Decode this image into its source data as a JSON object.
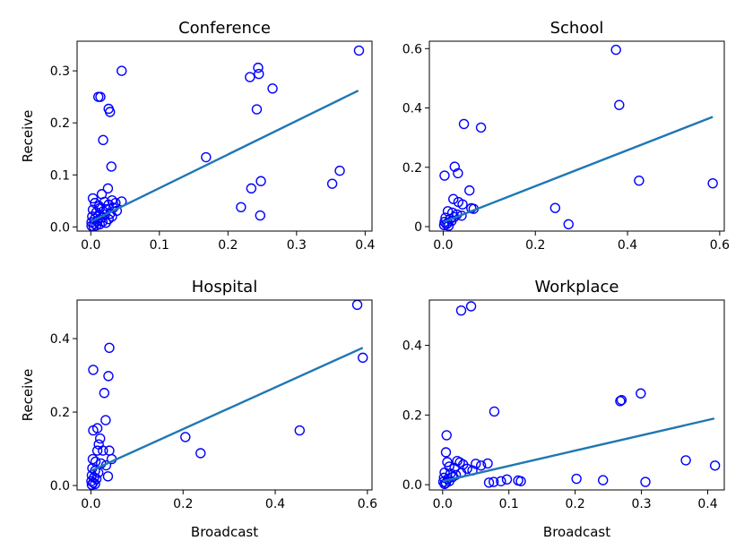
{
  "chart_data": [
    {
      "type": "scatter",
      "title": "Conference",
      "xlabel": "",
      "ylabel": "Receive",
      "xlim": [
        -0.02,
        0.41
      ],
      "ylim": [
        -0.008,
        0.357
      ],
      "xticks": [
        0.0,
        0.1,
        0.2,
        0.3,
        0.4
      ],
      "xtick_labels": [
        "0.0",
        "0.1",
        "0.2",
        "0.3",
        "0.4"
      ],
      "yticks": [
        0.0,
        0.1,
        0.2,
        0.3
      ],
      "ytick_labels": [
        "0.0",
        "0.1",
        "0.2",
        "0.3"
      ],
      "marker_color": "#0000ff",
      "fit_color": "#1f77b4",
      "fit_line": {
        "x": [
          0.0,
          0.39
        ],
        "y": [
          0.01,
          0.262
        ]
      },
      "points": [
        [
          0.045,
          0.3
        ],
        [
          0.011,
          0.25
        ],
        [
          0.014,
          0.25
        ],
        [
          0.026,
          0.227
        ],
        [
          0.028,
          0.221
        ],
        [
          0.018,
          0.167
        ],
        [
          0.03,
          0.116
        ],
        [
          0.016,
          0.063
        ],
        [
          0.025,
          0.074
        ],
        [
          0.003,
          0.055
        ],
        [
          0.006,
          0.046
        ],
        [
          0.012,
          0.04
        ],
        [
          0.02,
          0.048
        ],
        [
          0.026,
          0.043
        ],
        [
          0.031,
          0.051
        ],
        [
          0.036,
          0.046
        ],
        [
          0.045,
          0.049
        ],
        [
          0.003,
          0.033
        ],
        [
          0.008,
          0.028
        ],
        [
          0.013,
          0.036
        ],
        [
          0.018,
          0.03
        ],
        [
          0.023,
          0.034
        ],
        [
          0.028,
          0.025
        ],
        [
          0.033,
          0.037
        ],
        [
          0.038,
          0.031
        ],
        [
          0.002,
          0.02
        ],
        [
          0.006,
          0.016
        ],
        [
          0.011,
          0.022
        ],
        [
          0.016,
          0.018
        ],
        [
          0.021,
          0.024
        ],
        [
          0.026,
          0.015
        ],
        [
          0.031,
          0.02
        ],
        [
          0.001,
          0.009
        ],
        [
          0.005,
          0.006
        ],
        [
          0.009,
          0.011
        ],
        [
          0.013,
          0.005
        ],
        [
          0.017,
          0.01
        ],
        [
          0.022,
          0.008
        ],
        [
          0.001,
          0.002
        ],
        [
          0.004,
          0.001
        ],
        [
          0.008,
          0.003
        ],
        [
          0.244,
          0.306
        ],
        [
          0.245,
          0.294
        ],
        [
          0.232,
          0.288
        ],
        [
          0.265,
          0.266
        ],
        [
          0.391,
          0.339
        ],
        [
          0.168,
          0.134
        ],
        [
          0.242,
          0.226
        ],
        [
          0.363,
          0.108
        ],
        [
          0.352,
          0.083
        ],
        [
          0.248,
          0.088
        ],
        [
          0.234,
          0.074
        ],
        [
          0.219,
          0.038
        ],
        [
          0.247,
          0.022
        ]
      ]
    },
    {
      "type": "scatter",
      "title": "School",
      "xlabel": "",
      "ylabel": "",
      "xlim": [
        -0.03,
        0.61
      ],
      "ylim": [
        -0.015,
        0.625
      ],
      "xticks": [
        0.0,
        0.2,
        0.4,
        0.6
      ],
      "xtick_labels": [
        "0.0",
        "0.2",
        "0.4",
        "0.6"
      ],
      "yticks": [
        0.0,
        0.2,
        0.4,
        0.6
      ],
      "ytick_labels": [
        "0",
        "0.2",
        "0.4",
        "0.6"
      ],
      "marker_color": "#0000ff",
      "fit_color": "#1f77b4",
      "fit_line": {
        "x": [
          0.0,
          0.585
        ],
        "y": [
          0.015,
          0.37
        ]
      },
      "points": [
        [
          0.375,
          0.596
        ],
        [
          0.382,
          0.41
        ],
        [
          0.425,
          0.155
        ],
        [
          0.585,
          0.146
        ],
        [
          0.243,
          0.063
        ],
        [
          0.272,
          0.008
        ],
        [
          0.045,
          0.346
        ],
        [
          0.082,
          0.334
        ],
        [
          0.003,
          0.172
        ],
        [
          0.025,
          0.202
        ],
        [
          0.032,
          0.18
        ],
        [
          0.057,
          0.122
        ],
        [
          0.022,
          0.093
        ],
        [
          0.033,
          0.083
        ],
        [
          0.042,
          0.075
        ],
        [
          0.061,
          0.062
        ],
        [
          0.066,
          0.06
        ],
        [
          0.01,
          0.052
        ],
        [
          0.02,
          0.047
        ],
        [
          0.03,
          0.041
        ],
        [
          0.04,
          0.037
        ],
        [
          0.005,
          0.03
        ],
        [
          0.015,
          0.026
        ],
        [
          0.024,
          0.032
        ],
        [
          0.003,
          0.016
        ],
        [
          0.01,
          0.013
        ],
        [
          0.018,
          0.019
        ],
        [
          0.002,
          0.005
        ],
        [
          0.007,
          0.008
        ],
        [
          0.012,
          0.003
        ]
      ]
    },
    {
      "type": "scatter",
      "title": "Hospital",
      "xlabel": "Broadcast",
      "ylabel": "Receive",
      "xlim": [
        -0.03,
        0.61
      ],
      "ylim": [
        -0.012,
        0.505
      ],
      "xticks": [
        0.0,
        0.2,
        0.4,
        0.6
      ],
      "xtick_labels": [
        "0.0",
        "0.2",
        "0.4",
        "0.6"
      ],
      "yticks": [
        0.0,
        0.2,
        0.4
      ],
      "ytick_labels": [
        "0.0",
        "0.2",
        "0.4"
      ],
      "marker_color": "#0000ff",
      "fit_color": "#1f77b4",
      "fit_line": {
        "x": [
          0.0,
          0.59
        ],
        "y": [
          0.04,
          0.375
        ]
      },
      "points": [
        [
          0.578,
          0.492
        ],
        [
          0.59,
          0.348
        ],
        [
          0.453,
          0.15
        ],
        [
          0.205,
          0.132
        ],
        [
          0.238,
          0.088
        ],
        [
          0.04,
          0.375
        ],
        [
          0.005,
          0.315
        ],
        [
          0.038,
          0.298
        ],
        [
          0.029,
          0.252
        ],
        [
          0.032,
          0.178
        ],
        [
          0.014,
          0.156
        ],
        [
          0.005,
          0.15
        ],
        [
          0.02,
          0.128
        ],
        [
          0.017,
          0.112
        ],
        [
          0.026,
          0.095
        ],
        [
          0.04,
          0.095
        ],
        [
          0.014,
          0.095
        ],
        [
          0.045,
          0.072
        ],
        [
          0.004,
          0.072
        ],
        [
          0.01,
          0.065
        ],
        [
          0.022,
          0.06
        ],
        [
          0.033,
          0.055
        ],
        [
          0.037,
          0.025
        ],
        [
          0.003,
          0.047
        ],
        [
          0.009,
          0.04
        ],
        [
          0.016,
          0.035
        ],
        [
          0.002,
          0.028
        ],
        [
          0.007,
          0.022
        ],
        [
          0.012,
          0.018
        ],
        [
          0.001,
          0.012
        ],
        [
          0.005,
          0.008
        ],
        [
          0.009,
          0.004
        ],
        [
          0.002,
          0.002
        ]
      ]
    },
    {
      "type": "scatter",
      "title": "Workplace",
      "xlabel": "Broadcast",
      "ylabel": "",
      "xlim": [
        -0.02,
        0.425
      ],
      "ylim": [
        -0.015,
        0.53
      ],
      "xticks": [
        0.0,
        0.1,
        0.2,
        0.3,
        0.4
      ],
      "xtick_labels": [
        "0.0",
        "0.1",
        "0.2",
        "0.3",
        "0.4"
      ],
      "yticks": [
        0.0,
        0.2,
        0.4
      ],
      "ytick_labels": [
        "0.0",
        "0.2",
        "0.4"
      ],
      "marker_color": "#0000ff",
      "fit_color": "#1f77b4",
      "fit_line": {
        "x": [
          0.0,
          0.41
        ],
        "y": [
          0.01,
          0.19
        ]
      },
      "points": [
        [
          0.028,
          0.5
        ],
        [
          0.043,
          0.512
        ],
        [
          0.078,
          0.21
        ],
        [
          0.268,
          0.24
        ],
        [
          0.27,
          0.243
        ],
        [
          0.299,
          0.262
        ],
        [
          0.367,
          0.07
        ],
        [
          0.411,
          0.055
        ],
        [
          0.202,
          0.017
        ],
        [
          0.242,
          0.013
        ],
        [
          0.306,
          0.008
        ],
        [
          0.088,
          0.01
        ],
        [
          0.097,
          0.015
        ],
        [
          0.114,
          0.012
        ],
        [
          0.118,
          0.01
        ],
        [
          0.006,
          0.142
        ],
        [
          0.005,
          0.093
        ],
        [
          0.007,
          0.065
        ],
        [
          0.022,
          0.068
        ],
        [
          0.026,
          0.064
        ],
        [
          0.031,
          0.058
        ],
        [
          0.05,
          0.06
        ],
        [
          0.058,
          0.055
        ],
        [
          0.068,
          0.061
        ],
        [
          0.01,
          0.052
        ],
        [
          0.018,
          0.048
        ],
        [
          0.037,
          0.046
        ],
        [
          0.045,
          0.041
        ],
        [
          0.003,
          0.035
        ],
        [
          0.012,
          0.032
        ],
        [
          0.02,
          0.028
        ],
        [
          0.028,
          0.034
        ],
        [
          0.002,
          0.02
        ],
        [
          0.008,
          0.017
        ],
        [
          0.015,
          0.022
        ],
        [
          0.001,
          0.008
        ],
        [
          0.005,
          0.005
        ],
        [
          0.01,
          0.01
        ],
        [
          0.003,
          0.002
        ],
        [
          0.07,
          0.006
        ],
        [
          0.077,
          0.008
        ]
      ]
    }
  ]
}
